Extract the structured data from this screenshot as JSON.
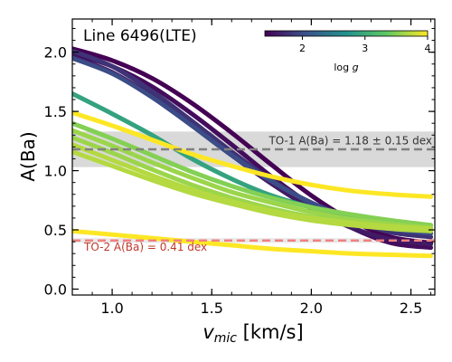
{
  "chart_data": {
    "type": "line",
    "title": "Line 6496(LTE)",
    "xlabel_main": "v",
    "xlabel_sub": "mic",
    "xlabel_unit": " [km/s]",
    "ylabel": "A(Ba)",
    "xlim": [
      0.8,
      2.62
    ],
    "ylim": [
      -0.05,
      2.28
    ],
    "xticks": [
      "1.0",
      "1.5",
      "2.0",
      "2.5"
    ],
    "xtick_values": [
      1.0,
      1.5,
      2.0,
      2.5
    ],
    "yticks": [
      "0.0",
      "0.5",
      "1.0",
      "1.5",
      "2.0"
    ],
    "ytick_values": [
      0.0,
      0.5,
      1.0,
      1.5,
      2.0
    ],
    "colorbar": {
      "label_main": "log ",
      "label_italic": "g",
      "range": [
        1.4,
        4.0
      ],
      "ticks": [
        "2",
        "3",
        "4"
      ],
      "tick_values": [
        2,
        3,
        4
      ],
      "colormap": "viridis",
      "colors": [
        "#440154",
        "#3b528b",
        "#21918c",
        "#5ec962",
        "#fde725"
      ]
    },
    "reference_bands": [
      {
        "name": "TO-1",
        "label": "TO-1  A(Ba) = 1.18 ± 0.15 dex",
        "value": 1.18,
        "err": 0.15,
        "line_color": "#808080",
        "band_color": "#d9d9d9",
        "text_color": "#333333"
      },
      {
        "name": "TO-2",
        "label": "TO-2  A(Ba) = 0.41 dex",
        "value": 0.41,
        "err": 0.02,
        "line_color": "#f08080",
        "band_color": "#e8e8e8",
        "text_color": "#c0392b"
      }
    ],
    "grid": false,
    "series": [
      {
        "logg": 1.4,
        "x": [
          0.8,
          1.0,
          1.2,
          1.4,
          1.6,
          1.8,
          2.0,
          2.2,
          2.4,
          2.6
        ],
        "y": [
          2.03,
          1.93,
          1.78,
          1.57,
          1.32,
          1.05,
          0.79,
          0.58,
          0.44,
          0.39
        ]
      },
      {
        "logg": 1.5,
        "x": [
          0.8,
          1.0,
          1.2,
          1.4,
          1.6,
          1.8,
          2.0,
          2.2,
          2.4,
          2.6
        ],
        "y": [
          1.99,
          1.88,
          1.71,
          1.48,
          1.22,
          0.95,
          0.71,
          0.52,
          0.39,
          0.35
        ]
      },
      {
        "logg": 1.6,
        "x": [
          0.8,
          1.0,
          1.2,
          1.4,
          1.6,
          1.8,
          2.0,
          2.2,
          2.4,
          2.6
        ],
        "y": [
          1.96,
          1.83,
          1.63,
          1.39,
          1.13,
          0.89,
          0.68,
          0.52,
          0.42,
          0.38
        ]
      },
      {
        "logg": 1.8,
        "x": [
          0.8,
          1.0,
          1.2,
          1.4,
          1.6,
          1.8,
          2.0,
          2.2,
          2.4,
          2.6
        ],
        "y": [
          2.01,
          1.88,
          1.67,
          1.42,
          1.16,
          0.92,
          0.72,
          0.58,
          0.48,
          0.44
        ]
      },
      {
        "logg": 2.0,
        "x": [
          0.8,
          1.0,
          1.2,
          1.4,
          1.6,
          1.8,
          2.0,
          2.2,
          2.4,
          2.6
        ],
        "y": [
          1.95,
          1.82,
          1.62,
          1.38,
          1.13,
          0.91,
          0.73,
          0.6,
          0.51,
          0.47
        ]
      },
      {
        "logg": 2.9,
        "x": [
          0.8,
          1.0,
          1.2,
          1.4,
          1.6,
          1.8,
          2.0,
          2.2,
          2.4,
          2.6
        ],
        "y": [
          1.65,
          1.48,
          1.3,
          1.1,
          0.93,
          0.79,
          0.69,
          0.61,
          0.55,
          0.51
        ]
      },
      {
        "logg": 3.5,
        "x": [
          0.8,
          1.0,
          1.2,
          1.4,
          1.6,
          1.8,
          2.0,
          2.2,
          2.4,
          2.6
        ],
        "y": [
          1.4,
          1.27,
          1.13,
          0.99,
          0.87,
          0.77,
          0.69,
          0.63,
          0.58,
          0.54
        ]
      },
      {
        "logg": 3.6,
        "x": [
          0.8,
          1.0,
          1.2,
          1.4,
          1.6,
          1.8,
          2.0,
          2.2,
          2.4,
          2.6
        ],
        "y": [
          1.34,
          1.21,
          1.07,
          0.94,
          0.82,
          0.73,
          0.65,
          0.59,
          0.55,
          0.52
        ]
      },
      {
        "logg": 3.6,
        "x": [
          0.8,
          1.0,
          1.2,
          1.4,
          1.6,
          1.8,
          2.0,
          2.2,
          2.4,
          2.6
        ],
        "y": [
          1.28,
          1.15,
          1.01,
          0.88,
          0.77,
          0.68,
          0.61,
          0.56,
          0.52,
          0.49
        ]
      },
      {
        "logg": 3.7,
        "x": [
          0.8,
          1.0,
          1.2,
          1.4,
          1.6,
          1.8,
          2.0,
          2.2,
          2.4,
          2.6
        ],
        "y": [
          1.22,
          1.09,
          0.96,
          0.84,
          0.74,
          0.66,
          0.6,
          0.56,
          0.53,
          0.51
        ]
      },
      {
        "logg": 3.7,
        "x": [
          0.8,
          1.0,
          1.2,
          1.4,
          1.6,
          1.8,
          2.0,
          2.2,
          2.4,
          2.6
        ],
        "y": [
          1.16,
          1.04,
          0.92,
          0.81,
          0.72,
          0.64,
          0.58,
          0.54,
          0.51,
          0.49
        ]
      },
      {
        "logg": 4.0,
        "x": [
          0.8,
          1.0,
          1.2,
          1.4,
          1.6,
          1.8,
          2.0,
          2.2,
          2.4,
          2.6
        ],
        "y": [
          1.49,
          1.38,
          1.26,
          1.14,
          1.04,
          0.95,
          0.88,
          0.83,
          0.8,
          0.78
        ]
      },
      {
        "logg": 4.0,
        "x": [
          0.8,
          1.0,
          1.2,
          1.4,
          1.6,
          1.8,
          2.0,
          2.2,
          2.4,
          2.6
        ],
        "y": [
          0.49,
          0.46,
          0.43,
          0.4,
          0.37,
          0.34,
          0.32,
          0.3,
          0.29,
          0.28
        ]
      }
    ]
  }
}
